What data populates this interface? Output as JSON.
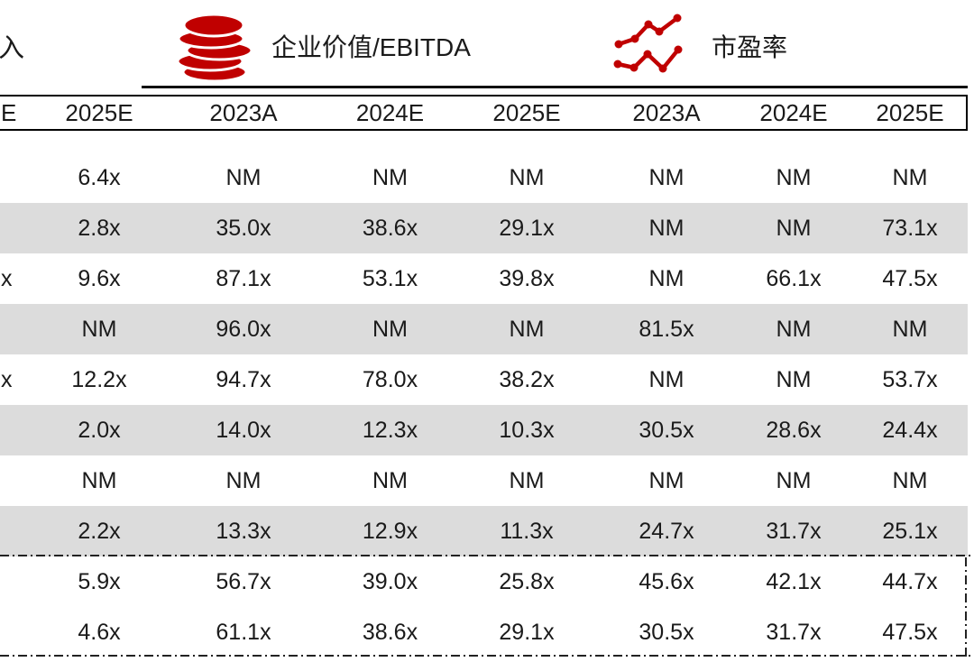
{
  "theme": {
    "accent_red": "#C00000",
    "stripe_gray": "#DCDCDC",
    "text_color": "#1A1A1A",
    "border_black": "#000000"
  },
  "legend": {
    "cropped_left_fragment": "入",
    "ev_ebitda": {
      "icon": "coin-stack-icon",
      "label": "企业价值/EBITDA"
    },
    "pe_ratio": {
      "icon": "line-chart-icon",
      "label": "市盈率"
    }
  },
  "table": {
    "columns": [
      "E",
      "2025E",
      "2023A",
      "2024E",
      "2025E",
      "2023A",
      "2024E",
      "2025E"
    ],
    "rows": [
      [
        "",
        "6.4x",
        "NM",
        "NM",
        "NM",
        "NM",
        "NM",
        "NM"
      ],
      [
        "",
        "2.8x",
        "35.0x",
        "38.6x",
        "29.1x",
        "NM",
        "NM",
        "73.1x"
      ],
      [
        "x",
        "9.6x",
        "87.1x",
        "53.1x",
        "39.8x",
        "NM",
        "66.1x",
        "47.5x"
      ],
      [
        "",
        "NM",
        "96.0x",
        "NM",
        "NM",
        "81.5x",
        "NM",
        "NM"
      ],
      [
        "x",
        "12.2x",
        "94.7x",
        "78.0x",
        "38.2x",
        "NM",
        "NM",
        "53.7x"
      ],
      [
        "",
        "2.0x",
        "14.0x",
        "12.3x",
        "10.3x",
        "30.5x",
        "28.6x",
        "24.4x"
      ],
      [
        "",
        "NM",
        "NM",
        "NM",
        "NM",
        "NM",
        "NM",
        "NM"
      ],
      [
        "",
        "2.2x",
        "13.3x",
        "12.9x",
        "11.3x",
        "24.7x",
        "31.7x",
        "25.1x"
      ]
    ],
    "summary_rows": [
      [
        "",
        "5.9x",
        "56.7x",
        "39.0x",
        "25.8x",
        "45.6x",
        "42.1x",
        "44.7x"
      ],
      [
        "",
        "4.6x",
        "61.1x",
        "38.6x",
        "29.1x",
        "30.5x",
        "31.7x",
        "47.5x"
      ]
    ]
  }
}
